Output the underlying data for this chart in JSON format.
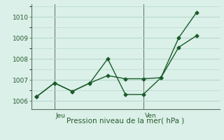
{
  "xlabel": "Pression niveau de la mer( hPa )",
  "background_color": "#daf0e8",
  "grid_color": "#b8d8cc",
  "line_color": "#1a5c2a",
  "ylim": [
    1005.6,
    1010.6
  ],
  "xlim": [
    -0.3,
    10.3
  ],
  "series1_x": [
    0.0,
    1.0,
    2.0,
    3.0,
    4.0,
    5.0,
    6.0,
    7.0,
    8.0,
    9.0
  ],
  "series1_y": [
    1006.2,
    1006.85,
    1006.45,
    1006.85,
    1007.2,
    1007.05,
    1007.05,
    1007.1,
    1008.55,
    1009.1
  ],
  "series2_x": [
    0.0,
    1.0,
    2.0,
    3.0,
    4.0,
    5.0,
    6.0,
    7.0,
    8.0,
    9.0
  ],
  "series2_y": [
    1006.2,
    1006.85,
    1006.45,
    1006.85,
    1008.0,
    1006.3,
    1006.3,
    1007.1,
    1009.0,
    1010.2
  ],
  "ytick_positions": [
    1006,
    1007,
    1008,
    1009,
    1010
  ],
  "vline_positions": [
    1.0,
    6.0
  ],
  "vline_labels": [
    "Jeu",
    "Ven"
  ],
  "vline_label_offsets": [
    0.08,
    0.08
  ]
}
